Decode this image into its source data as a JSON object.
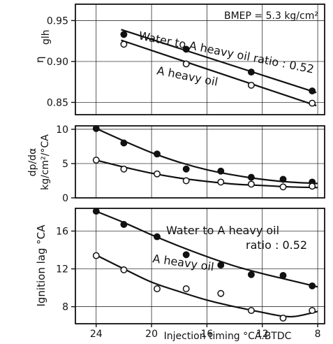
{
  "chart_data": {
    "type": "scatter",
    "xlabel": "Injection timing °CA.BTDC",
    "x_ticks": [
      24,
      20,
      16,
      12,
      8
    ],
    "xlim": [
      25.5,
      7.5
    ],
    "panels": [
      {
        "ylabel_main": "η",
        "ylabel_sub": "glh",
        "ylim": [
          0.835,
          0.97
        ],
        "y_ticks": [
          0.95,
          0.9,
          0.85
        ],
        "y_tick_labels": [
          "0.95",
          "0.90",
          "0.85"
        ],
        "annotation": "BMEP = 5.3 kg/cm²",
        "series": [
          {
            "name": "Water to A heavy oil ratio : 0.52",
            "marker": "filled",
            "points": [
              [
                22,
                0.933
              ],
              [
                17.5,
                0.915
              ],
              [
                12.8,
                0.887
              ],
              [
                8.4,
                0.864
              ]
            ],
            "fit": [
              [
                22.2,
                0.939
              ],
              [
                8.1,
                0.862
              ]
            ]
          },
          {
            "name": "A heavy oil",
            "marker": "open",
            "points": [
              [
                22,
                0.921
              ],
              [
                17.5,
                0.897
              ],
              [
                12.8,
                0.871
              ],
              [
                8.4,
                0.849
              ]
            ],
            "fit": [
              [
                22.2,
                0.926
              ],
              [
                8.1,
                0.846
              ]
            ]
          }
        ]
      },
      {
        "ylabel_main": "dp/dα",
        "ylabel_sub": "kg/cm²/°CA",
        "ylim": [
          0,
          10.5
        ],
        "y_ticks": [
          10,
          5,
          0
        ],
        "y_tick_labels": [
          "10",
          "5",
          "0"
        ],
        "series": [
          {
            "name": "Water to A heavy oil ratio : 0.52",
            "marker": "filled",
            "points": [
              [
                24,
                10.1
              ],
              [
                22,
                8.0
              ],
              [
                19.6,
                6.4
              ],
              [
                17.5,
                4.2
              ],
              [
                15,
                3.9
              ],
              [
                12.8,
                3.0
              ],
              [
                10.5,
                2.7
              ],
              [
                8.4,
                2.3
              ]
            ],
            "fit": [
              [
                24.2,
                10.3
              ],
              [
                22,
                8.3
              ],
              [
                20,
                6.6
              ],
              [
                18,
                5.2
              ],
              [
                16,
                4.1
              ],
              [
                14,
                3.3
              ],
              [
                12,
                2.7
              ],
              [
                10,
                2.3
              ],
              [
                8,
                2.1
              ]
            ]
          },
          {
            "name": "A heavy oil",
            "marker": "open",
            "points": [
              [
                24,
                5.5
              ],
              [
                22,
                4.2
              ],
              [
                19.6,
                3.5
              ],
              [
                17.5,
                2.5
              ],
              [
                15,
                2.3
              ],
              [
                12.8,
                2.0
              ],
              [
                10.5,
                1.6
              ],
              [
                8.4,
                1.7
              ]
            ],
            "fit": [
              [
                24.2,
                5.6
              ],
              [
                22,
                4.5
              ],
              [
                20,
                3.6
              ],
              [
                18,
                2.9
              ],
              [
                16,
                2.4
              ],
              [
                14,
                2.0
              ],
              [
                12,
                1.8
              ],
              [
                10,
                1.6
              ],
              [
                8,
                1.5
              ]
            ]
          }
        ]
      },
      {
        "ylabel_main": "Ignition lag °CA",
        "ylim": [
          6.2,
          18.4
        ],
        "y_ticks": [
          16,
          12,
          8
        ],
        "y_tick_labels": [
          "16",
          "12",
          "8"
        ],
        "series": [
          {
            "name": "Water to A heavy oil ratio : 0.52",
            "marker": "filled",
            "points": [
              [
                24,
                18.1
              ],
              [
                22,
                16.7
              ],
              [
                19.6,
                15.4
              ],
              [
                17.5,
                13.5
              ],
              [
                15,
                12.4
              ],
              [
                12.8,
                11.4
              ],
              [
                10.5,
                11.3
              ],
              [
                8.4,
                10.2
              ]
            ],
            "fit": [
              [
                24.2,
                18.2
              ],
              [
                22,
                16.9
              ],
              [
                20,
                15.6
              ],
              [
                18,
                14.4
              ],
              [
                16,
                13.3
              ],
              [
                14,
                12.3
              ],
              [
                12,
                11.5
              ],
              [
                10,
                10.8
              ],
              [
                8,
                10.1
              ]
            ]
          },
          {
            "name": "A heavy oil",
            "marker": "open",
            "points": [
              [
                24,
                13.4
              ],
              [
                22,
                11.9
              ],
              [
                19.6,
                9.9
              ],
              [
                17.5,
                9.9
              ],
              [
                15,
                9.4
              ],
              [
                12.8,
                7.6
              ],
              [
                10.5,
                6.8
              ],
              [
                8.4,
                7.6
              ]
            ],
            "fit": [
              [
                24.2,
                13.6
              ],
              [
                22,
                12.0
              ],
              [
                20,
                10.6
              ],
              [
                18,
                9.6
              ],
              [
                16,
                8.7
              ],
              [
                14,
                8.0
              ],
              [
                12,
                7.4
              ],
              [
                10.5,
                7.0
              ],
              [
                9.5,
                7.0
              ],
              [
                8,
                7.5
              ]
            ]
          }
        ]
      }
    ],
    "labels": {
      "water": "Water to A heavy oil ratio : 0.52",
      "water_line1": "Water to A heavy oil",
      "water_line2": "ratio : 0.52",
      "oil": "A heavy oil"
    }
  }
}
